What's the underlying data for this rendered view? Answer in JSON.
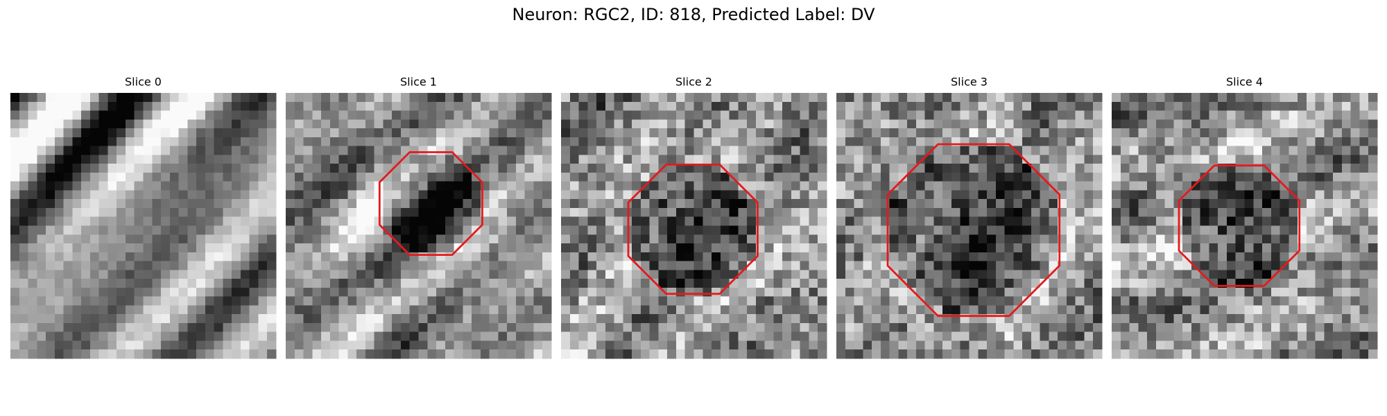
{
  "title": "Neuron: RGC2, ID: 818, Predicted Label: DV",
  "panels": [
    {
      "title": "Slice 0"
    },
    {
      "title": "Slice 1"
    },
    {
      "title": "Slice 2"
    },
    {
      "title": "Slice 3"
    },
    {
      "title": "Slice 4"
    }
  ]
}
